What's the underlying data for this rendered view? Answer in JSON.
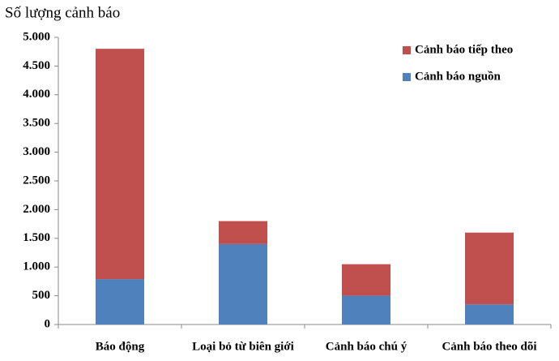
{
  "chart_data": {
    "type": "stacked_bar",
    "title": "Số lượng cảnh báo",
    "categories": [
      "Báo động",
      "Loại bỏ từ biên giới",
      "Cảnh báo chú ý",
      "Cảnh báo theo dõi"
    ],
    "series": [
      {
        "name": "Cảnh báo nguồn",
        "color": "#4f81bd",
        "values": [
          790,
          1400,
          500,
          350
        ]
      },
      {
        "name": "Cảnh báo tiếp theo",
        "color": "#c0504d",
        "values": [
          4010,
          400,
          550,
          1250
        ]
      }
    ],
    "ylim": [
      0,
      5000
    ],
    "yticks": [
      0,
      500,
      {
        "value": 1000,
        "label": "1.000"
      },
      {
        "value": 1500,
        "label": "1.500"
      },
      {
        "value": 2000,
        "label": "2.000"
      },
      {
        "value": 2500,
        "label": "2.500"
      },
      {
        "value": 3000,
        "label": "3.000"
      },
      {
        "value": 3500,
        "label": "3.500"
      },
      {
        "value": 4000,
        "label": "4.000"
      },
      {
        "value": 4500,
        "label": "4.500"
      },
      {
        "value": 5000,
        "label": "5.000"
      }
    ],
    "grid": false,
    "legend": "upper right"
  }
}
